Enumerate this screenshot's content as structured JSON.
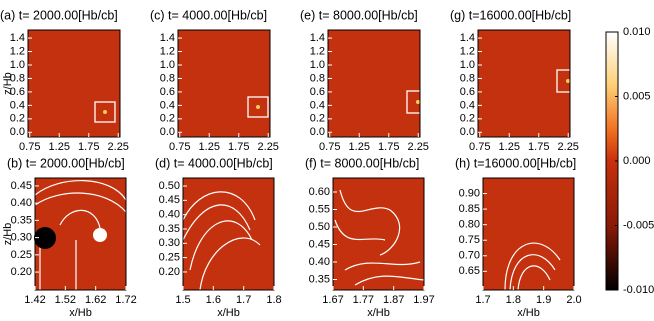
{
  "chart_data": [
    {
      "type": "heatmap",
      "title": "(a) t= 2000.00[Hb/cb]",
      "ylabel": "z/Hb",
      "xlim": [
        0.72,
        2.28
      ],
      "ylim": [
        -0.07,
        1.52
      ],
      "xticks": [
        {
          "value": 0.75,
          "label": "0.75"
        },
        1.25,
        1.75,
        2.25
      ],
      "yticks": [
        {
          "value": 0,
          "label": "0.0"
        },
        0.2,
        0.4,
        0.6,
        0.8,
        {
          "value": 1,
          "label": "1.0"
        },
        1.2,
        1.4
      ]
    },
    {
      "type": "heatmap",
      "title": "(c) t= 4000.00[Hb/cb]",
      "xlim": [
        0.72,
        2.28
      ],
      "ylim": [
        -0.07,
        1.52
      ],
      "xticks": [
        {
          "value": 0.75,
          "label": "0.75"
        },
        1.25,
        1.75,
        2.25
      ],
      "yticks": [
        {
          "value": 0,
          "label": "0.0"
        },
        0.2,
        0.4,
        0.6,
        0.8,
        {
          "value": 1,
          "label": "1.0"
        },
        1.2,
        1.4
      ]
    },
    {
      "type": "heatmap",
      "title": "(e) t= 8000.00[Hb/cb]",
      "xlim": [
        0.72,
        2.28
      ],
      "ylim": [
        -0.07,
        1.52
      ],
      "xticks": [
        {
          "value": 0.75,
          "label": "0.75"
        },
        1.25,
        1.75,
        2.25
      ],
      "yticks": [
        {
          "value": 0,
          "label": "0.0"
        },
        0.2,
        0.4,
        0.6,
        0.8,
        {
          "value": 1,
          "label": "1.0"
        },
        1.2,
        1.4
      ]
    },
    {
      "type": "heatmap",
      "title": "(g) t=16000.00[Hb/cb]",
      "xlim": [
        0.72,
        2.28
      ],
      "ylim": [
        -0.07,
        1.52
      ],
      "xticks": [
        {
          "value": 0.75,
          "label": "0.75"
        },
        1.25,
        1.75,
        2.25
      ],
      "yticks": [
        {
          "value": 0,
          "label": "0.0"
        },
        0.2,
        0.4,
        0.6,
        0.8,
        {
          "value": 1,
          "label": "1.0"
        },
        1.2,
        1.4
      ]
    },
    {
      "type": "heatmap",
      "title": "(b) t= 2000.00[Hb/cb]",
      "xlabel": "x/Hb",
      "ylabel": "z/Hb",
      "xlim": [
        1.42,
        1.72
      ],
      "ylim": [
        0.148,
        0.473
      ],
      "xticks": [
        1.42,
        1.52,
        1.62,
        1.72
      ],
      "yticks": [
        {
          "value": 0.2,
          "label": "0.20"
        },
        0.25,
        {
          "value": 0.3,
          "label": "0.30"
        },
        0.35,
        {
          "value": 0.4,
          "label": "0.40"
        },
        0.45
      ]
    },
    {
      "type": "heatmap",
      "title": "(d) t= 4000.00[Hb/cb]",
      "xlabel": "x/Hb",
      "xlim": [
        1.5,
        1.8
      ],
      "ylim": [
        0.137,
        0.528
      ],
      "xticks": [
        1.5,
        1.6,
        1.7,
        1.8
      ],
      "yticks": [
        {
          "value": 0.2,
          "label": "0.20"
        },
        0.25,
        {
          "value": 0.3,
          "label": "0.30"
        },
        0.35,
        {
          "value": 0.4,
          "label": "0.40"
        },
        0.45,
        {
          "value": 0.5,
          "label": "0.50"
        }
      ]
    },
    {
      "type": "heatmap",
      "title": "(f) t= 8000.00[Hb/cb]",
      "xlabel": "x/Hb",
      "xlim": [
        1.67,
        1.97
      ],
      "ylim": [
        0.32,
        0.64
      ],
      "xticks": [
        1.67,
        1.77,
        1.87,
        1.97
      ],
      "yticks": [
        0.35,
        {
          "value": 0.4,
          "label": "0.40"
        },
        0.45,
        {
          "value": 0.5,
          "label": "0.50"
        },
        0.55,
        {
          "value": 0.6,
          "label": "0.60"
        }
      ]
    },
    {
      "type": "heatmap",
      "title": "(h) t=16000.00[Hb/cb]",
      "xlabel": "x/Hb",
      "xlim": [
        1.7,
        2.0
      ],
      "ylim": [
        0.59,
        0.95
      ],
      "xticks": [
        1.7,
        1.8,
        1.9,
        {
          "value": 2,
          "label": "2.0"
        }
      ],
      "yticks": [
        0.65,
        {
          "value": 0.7,
          "label": "0.70"
        },
        0.75,
        {
          "value": 0.8,
          "label": "0.80"
        },
        0.85,
        {
          "value": 0.9,
          "label": "0.90"
        }
      ]
    },
    {
      "type": "colorbar",
      "ylim": [
        -0.01,
        0.01
      ],
      "yticks": [
        {
          "value": 0.01,
          "label": "0.010"
        },
        {
          "value": 0.005,
          "label": "0.005"
        },
        {
          "value": 0,
          "label": "0.000"
        },
        {
          "value": -0.005,
          "label": "-0.005"
        },
        {
          "value": -0.01,
          "label": "-0.010"
        }
      ]
    }
  ]
}
